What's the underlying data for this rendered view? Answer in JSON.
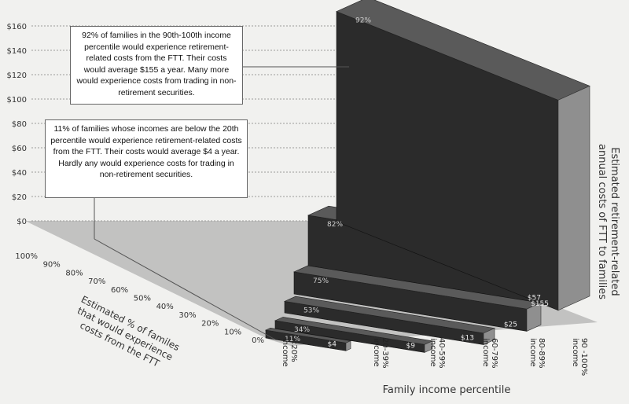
{
  "chart_data": {
    "type": "bar",
    "subtype": "3d-stepped-bar",
    "categories": [
      "<20% income",
      "20-39% income",
      "40-59% income",
      "60-79% income",
      "80-89% income",
      "90 -100% income"
    ],
    "values": [
      4,
      9,
      13,
      25,
      57,
      155
    ],
    "value_labels": [
      "$4",
      "$9",
      "$13",
      "$25",
      "$57",
      "$155"
    ],
    "percent_values": [
      11,
      34,
      53,
      75,
      82,
      92
    ],
    "percent_labels": [
      "11%",
      "34%",
      "53%",
      "75%",
      "82%",
      "92%"
    ],
    "ylim": [
      0,
      160
    ],
    "y_ticks": [
      "$0",
      "$20",
      "$40",
      "$60",
      "$80",
      "$100",
      "$120",
      "$140",
      "$160"
    ],
    "depth_ticks": [
      "0%",
      "10%",
      "20%",
      "30%",
      "40%",
      "50%",
      "60%",
      "70%",
      "80%",
      "90%",
      "100%"
    ],
    "xlabel": "Family income percentile",
    "ylabel": "Estimated retirement-related annual costs of FTT to families",
    "depth_label": "Estimated % of familes that would experience costs from the FTT",
    "grid": true,
    "colors": {
      "bar_front": "#2b2b2b",
      "bar_side": "#8f8f8f",
      "bar_top": "#5a5a5a",
      "floor": "#9a9a9a",
      "background": "#f1f1ef"
    },
    "annotations": [
      "92% of families in the 90th-100th income percentile would experience retirement-related costs from the FTT. Their costs would average $155 a year. Many more would experience costs from trading in non-retirement securities.",
      "11% of families whose incomes are below the 20th percentile would experience retirement-related costs from the FTT. Their costs would average $4 a year. Hardly any would experience costs for trading in non-retirement securities."
    ]
  }
}
